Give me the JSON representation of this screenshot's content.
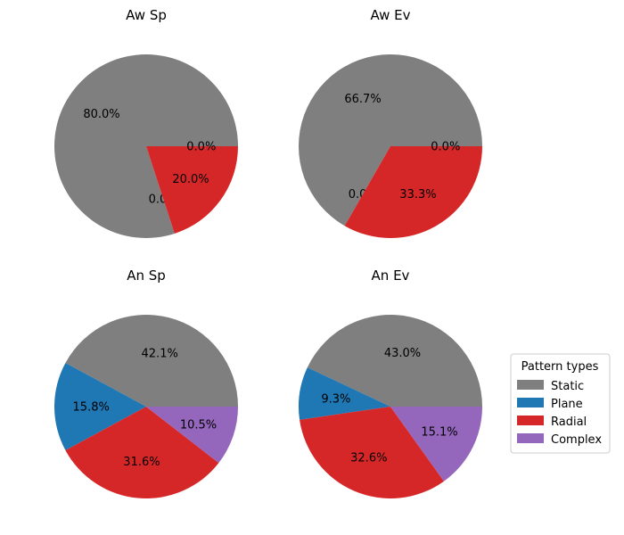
{
  "chart_data": {
    "type": "pie",
    "labels": [
      "Static",
      "Plane",
      "Radial",
      "Complex"
    ],
    "colors": {
      "Static": "#7f7f7f",
      "Plane": "#1f77b4",
      "Radial": "#d62728",
      "Complex": "#9467bd"
    },
    "legend": {
      "title": "Pattern types",
      "entries": [
        "Static",
        "Plane",
        "Radial",
        "Complex"
      ],
      "placement": "center-right"
    },
    "charts": [
      {
        "title": "Aw Sp",
        "values": [
          80.0,
          0.0,
          20.0,
          0.0
        ],
        "pct_labels": [
          "80.0%",
          "0.0%",
          "20.0%",
          "0.0%"
        ]
      },
      {
        "title": "Aw Ev",
        "values": [
          66.7,
          0.0,
          33.3,
          0.0
        ],
        "pct_labels": [
          "66.7%",
          "0.0%",
          "33.3%",
          "0.0%"
        ]
      },
      {
        "title": "An Sp",
        "values": [
          42.1,
          15.8,
          31.6,
          10.5
        ],
        "pct_labels": [
          "42.1%",
          "15.8%",
          "31.6%",
          "10.5%"
        ]
      },
      {
        "title": "An Ev",
        "values": [
          43.0,
          9.3,
          32.6,
          15.1
        ],
        "pct_labels": [
          "43.0%",
          "9.3%",
          "32.6%",
          "15.1%"
        ]
      }
    ]
  }
}
